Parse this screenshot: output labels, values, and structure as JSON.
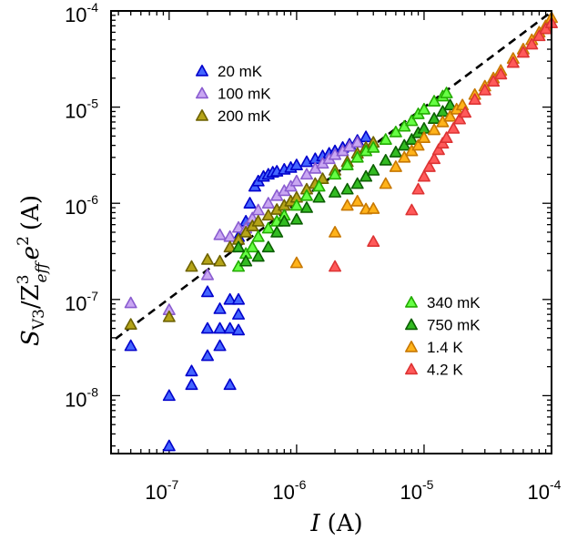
{
  "chart_data": {
    "type": "scatter",
    "xscale": "log",
    "yscale": "log",
    "xlim": [
      3.5e-08,
      0.0001
    ],
    "ylim": [
      2.5e-09,
      0.0001
    ],
    "xlabel": {
      "var": "I",
      "unit": "(A)"
    },
    "ylabel": {
      "var": "S",
      "sub": "V3",
      "mid": "/Z",
      "sup3": "3",
      "sub2": "eff",
      "e": "e",
      "sup2": "2",
      "unit": "(A)"
    },
    "x_ticks": [
      {
        "value": 1e-07,
        "base": "10",
        "exp": "-7"
      },
      {
        "value": 1e-06,
        "base": "10",
        "exp": "-6"
      },
      {
        "value": 1e-05,
        "base": "10",
        "exp": "-5"
      },
      {
        "value": 0.0001,
        "base": "10",
        "exp": "-4"
      }
    ],
    "y_ticks": [
      {
        "value": 1e-08,
        "base": "10",
        "exp": "-8"
      },
      {
        "value": 1e-07,
        "base": "10",
        "exp": "-7"
      },
      {
        "value": 1e-06,
        "base": "10",
        "exp": "-6"
      },
      {
        "value": 1e-05,
        "base": "10",
        "exp": "-5"
      },
      {
        "value": 0.0001,
        "base": "10",
        "exp": "-4"
      }
    ],
    "legends": [
      {
        "position": "top-left",
        "entries": [
          "20 mK",
          "100 mK",
          "200 mK"
        ]
      },
      {
        "position": "bottom-right",
        "entries": [
          "340 mK",
          "750 mK",
          "1.4 K",
          "4.2 K"
        ]
      }
    ],
    "series": [
      {
        "name": "20 mK",
        "fill": "#4466ff",
        "stroke": "#0000cc",
        "points": [
          [
            5e-08,
            3.3e-08
          ],
          [
            1e-07,
            3e-09
          ],
          [
            1e-07,
            1e-08
          ],
          [
            1.5e-07,
            1.3e-08
          ],
          [
            1.5e-07,
            1.8e-08
          ],
          [
            2e-07,
            2.6e-08
          ],
          [
            2e-07,
            5e-08
          ],
          [
            2e-07,
            1.2e-07
          ],
          [
            2.5e-07,
            3.3e-08
          ],
          [
            2.5e-07,
            5e-08
          ],
          [
            2.5e-07,
            8e-08
          ],
          [
            3e-07,
            1.3e-08
          ],
          [
            3e-07,
            5e-08
          ],
          [
            3e-07,
            1e-07
          ],
          [
            3.5e-07,
            4.8e-08
          ],
          [
            3.5e-07,
            7e-08
          ],
          [
            3.5e-07,
            1e-07
          ],
          [
            3.5e-07,
            4.5e-07
          ],
          [
            4e-07,
            6.5e-07
          ],
          [
            4.3e-07,
            1e-06
          ],
          [
            4.7e-07,
            1.5e-06
          ],
          [
            5e-07,
            1.7e-06
          ],
          [
            5.5e-07,
            1.9e-06
          ],
          [
            6e-07,
            2e-06
          ],
          [
            6.5e-07,
            2.1e-06
          ],
          [
            7e-07,
            2.15e-06
          ],
          [
            8e-07,
            2.25e-06
          ],
          [
            9e-07,
            2.35e-06
          ],
          [
            1e-06,
            2.5e-06
          ],
          [
            1.2e-06,
            2.7e-06
          ],
          [
            1.4e-06,
            2.9e-06
          ],
          [
            1.6e-06,
            3.1e-06
          ],
          [
            1.8e-06,
            3.3e-06
          ],
          [
            2e-06,
            3.5e-06
          ],
          [
            2.3e-06,
            3.8e-06
          ],
          [
            2.6e-06,
            4.1e-06
          ],
          [
            3e-06,
            4.5e-06
          ],
          [
            3.5e-06,
            4.9e-06
          ]
        ]
      },
      {
        "name": "100 mK",
        "fill": "#c9a7f2",
        "stroke": "#8a5cd0",
        "points": [
          [
            5e-08,
            9.2e-08
          ],
          [
            1e-07,
            7.8e-08
          ],
          [
            2e-07,
            1.8e-07
          ],
          [
            2.5e-07,
            4.7e-07
          ],
          [
            3e-07,
            4.5e-07
          ],
          [
            3.5e-07,
            5.6e-07
          ],
          [
            4e-07,
            5.5e-07
          ],
          [
            4.5e-07,
            7e-07
          ],
          [
            5e-07,
            8.5e-07
          ],
          [
            6e-07,
            1e-06
          ],
          [
            7e-07,
            1.2e-06
          ],
          [
            8e-07,
            1.35e-06
          ],
          [
            9e-07,
            1.5e-06
          ],
          [
            1e-06,
            1.7e-06
          ],
          [
            1.2e-06,
            2e-06
          ],
          [
            1.4e-06,
            2.3e-06
          ],
          [
            1.6e-06,
            2.6e-06
          ],
          [
            1.8e-06,
            2.9e-06
          ],
          [
            2e-06,
            3.2e-06
          ],
          [
            2.3e-06,
            3.5e-06
          ],
          [
            2.6e-06,
            3.9e-06
          ],
          [
            3e-06,
            4.3e-06
          ]
        ]
      },
      {
        "name": "200 mK",
        "fill": "#b5a418",
        "stroke": "#6d6200",
        "points": [
          [
            5e-08,
            5.5e-08
          ],
          [
            1e-07,
            6.6e-08
          ],
          [
            1.5e-07,
            2.2e-07
          ],
          [
            2e-07,
            2.6e-07
          ],
          [
            2.5e-07,
            2.5e-07
          ],
          [
            3e-07,
            3.5e-07
          ],
          [
            3.5e-07,
            4.2e-07
          ],
          [
            4e-07,
            5e-07
          ],
          [
            4.5e-07,
            5.8e-07
          ],
          [
            5e-07,
            6.5e-07
          ],
          [
            6e-07,
            7.5e-07
          ],
          [
            7e-07,
            8.6e-07
          ],
          [
            8e-07,
            9.5e-07
          ],
          [
            9e-07,
            1.05e-06
          ],
          [
            1e-06,
            1.15e-06
          ],
          [
            1.2e-06,
            1.4e-06
          ],
          [
            1.4e-06,
            1.6e-06
          ],
          [
            1.6e-06,
            1.8e-06
          ],
          [
            2e-06,
            2.2e-06
          ],
          [
            2.5e-06,
            2.7e-06
          ],
          [
            3e-06,
            3.3e-06
          ],
          [
            3.5e-06,
            3.8e-06
          ],
          [
            4e-06,
            4.3e-06
          ]
        ]
      },
      {
        "name": "340 mK",
        "fill": "#66ff44",
        "stroke": "#22aa00",
        "points": [
          [
            3.5e-07,
            2.2e-07
          ],
          [
            4e-07,
            3e-07
          ],
          [
            4.5e-07,
            3.5e-07
          ],
          [
            5e-07,
            4.5e-07
          ],
          [
            6e-07,
            5.5e-07
          ],
          [
            7e-07,
            6.5e-07
          ],
          [
            8e-07,
            7.5e-07
          ],
          [
            1e-06,
            9.5e-07
          ],
          [
            1.2e-06,
            1.2e-06
          ],
          [
            1.5e-06,
            1.5e-06
          ],
          [
            2e-06,
            2e-06
          ],
          [
            2.5e-06,
            2.5e-06
          ],
          [
            3e-06,
            3e-06
          ],
          [
            3.5e-06,
            3.5e-06
          ],
          [
            4e-06,
            3.8e-06
          ],
          [
            5e-06,
            4.6e-06
          ],
          [
            6e-06,
            5.5e-06
          ],
          [
            7e-06,
            6.3e-06
          ],
          [
            8e-06,
            7.2e-06
          ],
          [
            9e-06,
            8.5e-06
          ],
          [
            1e-05,
            9.5e-06
          ],
          [
            1.2e-05,
            1.15e-05
          ],
          [
            1.4e-05,
            1.3e-05
          ],
          [
            1.5e-05,
            1.4e-05
          ]
        ]
      },
      {
        "name": "750 mK",
        "fill": "#33bb22",
        "stroke": "#0a5e00",
        "points": [
          [
            3.5e-07,
            3.5e-07
          ],
          [
            4e-07,
            2.5e-07
          ],
          [
            5e-07,
            2.8e-07
          ],
          [
            6e-07,
            3.5e-07
          ],
          [
            7e-07,
            5e-07
          ],
          [
            8e-07,
            6.5e-07
          ],
          [
            1e-06,
            6.8e-07
          ],
          [
            1.2e-06,
            9e-07
          ],
          [
            1.5e-06,
            1.15e-06
          ],
          [
            2e-06,
            1.3e-06
          ],
          [
            2.5e-06,
            1.4e-06
          ],
          [
            3e-06,
            1.6e-06
          ],
          [
            3.5e-06,
            1.9e-06
          ],
          [
            4e-06,
            2.2e-06
          ],
          [
            5e-06,
            2.8e-06
          ],
          [
            6e-06,
            3.4e-06
          ],
          [
            7e-06,
            4e-06
          ],
          [
            8e-06,
            4.6e-06
          ],
          [
            9e-06,
            5.4e-06
          ],
          [
            1e-05,
            6e-06
          ],
          [
            1.2e-05,
            7.6e-06
          ],
          [
            1.4e-05,
            9e-06
          ],
          [
            1.6e-05,
            1.05e-05
          ]
        ]
      },
      {
        "name": "1.4 K",
        "fill": "#ffb31a",
        "stroke": "#c77700",
        "points": [
          [
            1e-06,
            2.4e-07
          ],
          [
            2e-06,
            5e-07
          ],
          [
            2.5e-06,
            9.5e-07
          ],
          [
            3e-06,
            1.05e-06
          ],
          [
            3.5e-06,
            8.7e-07
          ],
          [
            4e-06,
            8.8e-07
          ],
          [
            5e-06,
            1.6e-06
          ],
          [
            6e-06,
            2.4e-06
          ],
          [
            7e-06,
            3e-06
          ],
          [
            8e-06,
            3.5e-06
          ],
          [
            9e-06,
            4e-06
          ],
          [
            1e-05,
            4.8e-06
          ],
          [
            1.2e-05,
            5.8e-06
          ],
          [
            1.4e-05,
            7e-06
          ],
          [
            1.6e-05,
            8e-06
          ],
          [
            1.8e-05,
            9.5e-06
          ],
          [
            2e-05,
            1.05e-05
          ],
          [
            2.5e-05,
            1.35e-05
          ],
          [
            3e-05,
            1.65e-05
          ],
          [
            3.5e-05,
            2e-05
          ],
          [
            4e-05,
            2.4e-05
          ],
          [
            5e-05,
            3.2e-05
          ],
          [
            6e-05,
            4e-05
          ],
          [
            7e-05,
            5e-05
          ],
          [
            8e-05,
            6e-05
          ],
          [
            9e-05,
            7e-05
          ],
          [
            0.0001,
            8.5e-05
          ]
        ]
      },
      {
        "name": "4.2 K",
        "fill": "#ff5a5a",
        "stroke": "#dd3333",
        "points": [
          [
            2e-06,
            2.2e-07
          ],
          [
            4e-06,
            4e-07
          ],
          [
            8e-06,
            8.5e-07
          ],
          [
            9e-06,
            1.4e-06
          ],
          [
            1e-05,
            1.9e-06
          ],
          [
            1.1e-05,
            2.4e-06
          ],
          [
            1.2e-05,
            2.9e-06
          ],
          [
            1.3e-05,
            3.6e-06
          ],
          [
            1.4e-05,
            4.2e-06
          ],
          [
            1.5e-05,
            4.8e-06
          ],
          [
            1.7e-05,
            6e-06
          ],
          [
            1.9e-05,
            7.5e-06
          ],
          [
            2.1e-05,
            8.8e-06
          ],
          [
            2.5e-05,
            1.2e-05
          ],
          [
            3e-05,
            1.5e-05
          ],
          [
            3.5e-05,
            1.85e-05
          ],
          [
            4e-05,
            2.2e-05
          ],
          [
            5e-05,
            2.9e-05
          ],
          [
            6e-05,
            3.7e-05
          ],
          [
            7e-05,
            4.5e-05
          ],
          [
            8e-05,
            5.5e-05
          ],
          [
            9e-05,
            6.5e-05
          ],
          [
            0.0001,
            7.5e-05
          ]
        ]
      }
    ],
    "fit_line": {
      "style": "dashed",
      "color": "#000000",
      "x": [
        3.8e-08,
        0.0001
      ],
      "y": [
        3.9e-08,
        9.8e-05
      ]
    }
  }
}
